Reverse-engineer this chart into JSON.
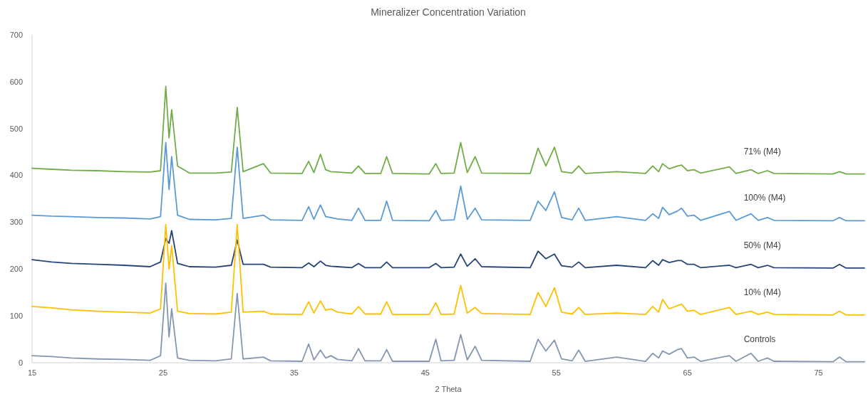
{
  "chart_data": {
    "type": "line",
    "title": "Mineralizer Concentration Variation",
    "xlabel": "2 Theta",
    "x": [
      15,
      16.5,
      18,
      20,
      22,
      24,
      24.8,
      25.2,
      25.45,
      25.65,
      26.1,
      27,
      29,
      30.2,
      30.65,
      31.1,
      32.65,
      33.2,
      35.6,
      36.1,
      36.5,
      37.0,
      37.4,
      37.8,
      38.3,
      39.4,
      39.9,
      40.4,
      41.6,
      42.05,
      42.5,
      45.3,
      45.8,
      46.2,
      47.2,
      47.7,
      48.2,
      48.8,
      49.3,
      53.0,
      53.6,
      54.2,
      54.85,
      55.4,
      56.2,
      56.7,
      57.2,
      59.6,
      61.8,
      62.35,
      62.8,
      63.1,
      63.6,
      64.25,
      64.55,
      65.0,
      65.5,
      66.0,
      68.2,
      68.7,
      69.85,
      70.4,
      71.1,
      71.6,
      76.1,
      76.6,
      77.1,
      78.5
    ],
    "series": [
      {
        "name": "71% (M4)",
        "color": "#70ad47",
        "values": [
          415,
          413,
          411,
          410,
          408,
          407,
          410,
          590,
          480,
          540,
          420,
          405,
          405,
          407,
          545,
          408,
          425,
          405,
          404,
          430,
          406,
          445,
          412,
          408,
          407,
          405,
          420,
          404,
          404,
          440,
          404,
          403,
          425,
          404,
          405,
          470,
          406,
          440,
          405,
          404,
          458,
          420,
          460,
          408,
          405,
          420,
          404,
          408,
          404,
          420,
          408,
          425,
          414,
          420,
          422,
          410,
          412,
          405,
          418,
          404,
          412,
          404,
          410,
          404,
          403,
          408,
          403,
          403
        ]
      },
      {
        "name": "100% (M4)",
        "color": "#5b9bd5",
        "values": [
          315,
          313,
          312,
          310,
          309,
          307,
          312,
          470,
          370,
          440,
          315,
          306,
          305,
          308,
          460,
          308,
          315,
          305,
          304,
          333,
          306,
          337,
          312,
          310,
          307,
          304,
          330,
          304,
          304,
          345,
          304,
          303,
          325,
          304,
          305,
          377,
          306,
          330,
          305,
          304,
          345,
          325,
          365,
          310,
          305,
          330,
          304,
          312,
          304,
          318,
          308,
          332,
          316,
          324,
          330,
          313,
          315,
          304,
          323,
          304,
          318,
          304,
          310,
          304,
          303,
          310,
          303,
          303
        ]
      },
      {
        "name": "50% (M4)",
        "color": "#264478",
        "values": [
          220,
          215,
          212,
          210,
          208,
          205,
          215,
          265,
          255,
          282,
          212,
          205,
          204,
          208,
          262,
          210,
          210,
          204,
          203,
          213,
          205,
          217,
          208,
          206,
          205,
          203,
          212,
          203,
          203,
          215,
          203,
          203,
          212,
          203,
          204,
          232,
          206,
          222,
          205,
          203,
          238,
          222,
          232,
          207,
          204,
          215,
          203,
          208,
          203,
          218,
          208,
          220,
          214,
          218,
          218,
          210,
          210,
          203,
          208,
          203,
          210,
          203,
          208,
          203,
          202,
          210,
          202,
          202
        ]
      },
      {
        "name": "10% (M4)",
        "color": "#ffc000",
        "values": [
          120,
          117,
          113,
          110,
          108,
          106,
          115,
          295,
          200,
          250,
          110,
          105,
          104,
          108,
          295,
          108,
          110,
          104,
          103,
          130,
          106,
          132,
          112,
          115,
          108,
          104,
          120,
          104,
          104,
          130,
          103,
          103,
          128,
          103,
          104,
          165,
          106,
          118,
          105,
          103,
          150,
          120,
          160,
          108,
          104,
          118,
          103,
          106,
          103,
          120,
          108,
          135,
          115,
          122,
          125,
          110,
          112,
          103,
          118,
          103,
          110,
          103,
          108,
          103,
          102,
          110,
          102,
          102
        ]
      },
      {
        "name": "Controls",
        "color": "#8497b0",
        "values": [
          15,
          13,
          10,
          8,
          7,
          5,
          15,
          170,
          55,
          115,
          10,
          5,
          4,
          8,
          148,
          8,
          12,
          4,
          3,
          40,
          6,
          27,
          10,
          15,
          7,
          4,
          30,
          4,
          4,
          28,
          3,
          3,
          50,
          4,
          5,
          60,
          6,
          35,
          5,
          3,
          50,
          25,
          48,
          8,
          4,
          27,
          3,
          12,
          3,
          20,
          10,
          25,
          18,
          28,
          30,
          10,
          12,
          3,
          15,
          3,
          20,
          3,
          10,
          3,
          2,
          12,
          2,
          2
        ]
      }
    ],
    "xlim": [
      15,
      78.5
    ],
    "xticks": [
      15,
      25,
      35,
      45,
      55,
      65,
      75
    ],
    "ylim": [
      0,
      700
    ],
    "yticks": [
      0,
      100,
      200,
      300,
      400,
      500,
      600,
      700
    ],
    "legend": false,
    "grid": false
  }
}
